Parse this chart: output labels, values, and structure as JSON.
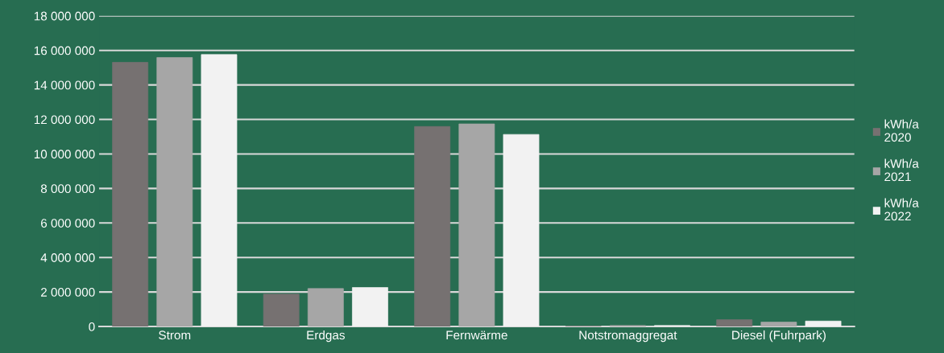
{
  "chart_data": {
    "type": "bar",
    "categories": [
      "Strom",
      "Erdgas",
      "Fernwärme",
      "Notstromaggregat",
      "Diesel (Fuhrpark)"
    ],
    "series": [
      {
        "name": "kWh/a 2020",
        "color": "#767171",
        "values": [
          15310000,
          1880000,
          11590000,
          10000,
          395000
        ]
      },
      {
        "name": "kWh/a 2021",
        "color": "#a6a6a6",
        "values": [
          15590000,
          2200000,
          11740000,
          60000,
          256000
        ]
      },
      {
        "name": "kWh/a 2022",
        "color": "#f2f2f2",
        "values": [
          15760000,
          2260000,
          11130000,
          60000,
          316000
        ]
      }
    ],
    "ylim": [
      0,
      18000000
    ],
    "yticks": [
      {
        "value": 0,
        "label": "0"
      },
      {
        "value": 2000000,
        "label": "2 000 000"
      },
      {
        "value": 4000000,
        "label": "4 000 000"
      },
      {
        "value": 6000000,
        "label": "6 000 000"
      },
      {
        "value": 8000000,
        "label": "8 000 000"
      },
      {
        "value": 10000000,
        "label": "10 000 000"
      },
      {
        "value": 12000000,
        "label": "12 000 000"
      },
      {
        "value": 14000000,
        "label": "14 000 000"
      },
      {
        "value": 16000000,
        "label": "16 000 000"
      },
      {
        "value": 18000000,
        "label": "18 000 000"
      }
    ],
    "grid": "y",
    "legend": "right"
  }
}
